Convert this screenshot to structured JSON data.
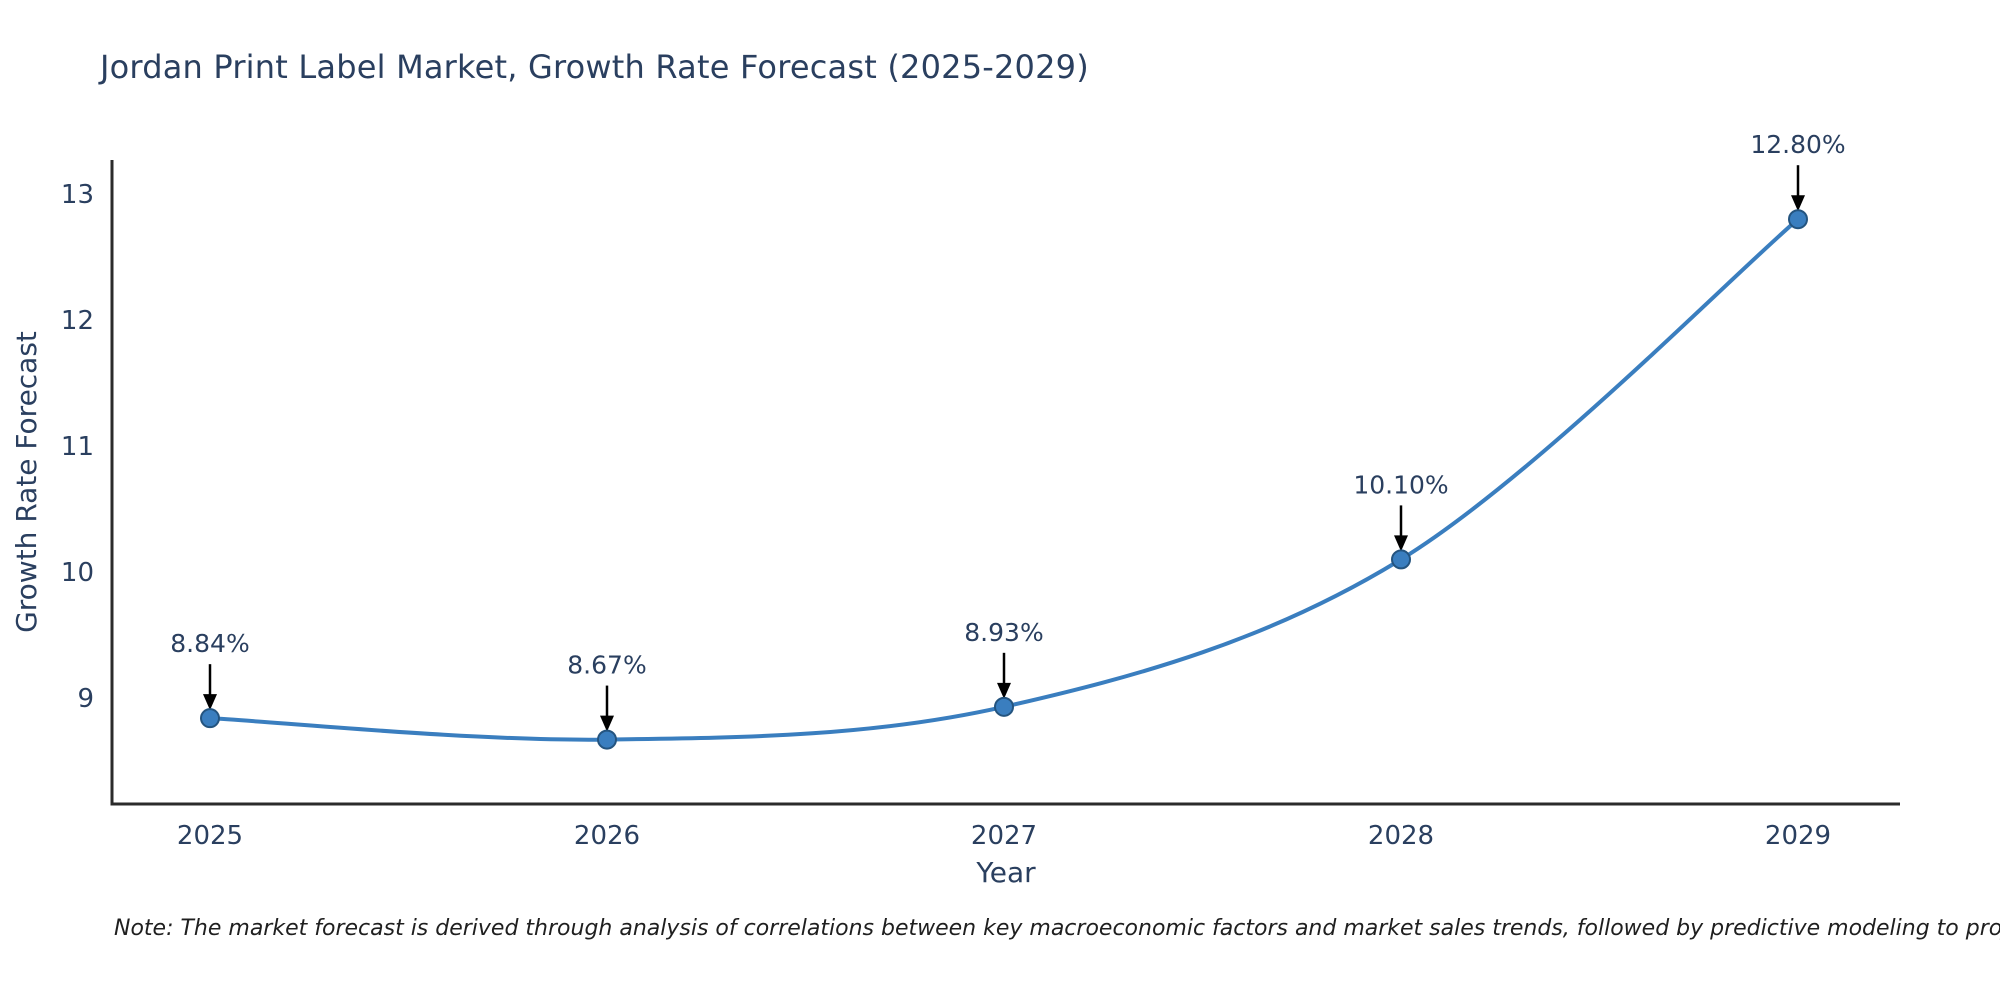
{
  "chart_data": {
    "type": "line",
    "title": "Jordan Print Label Market, Growth Rate Forecast (2025-2029)",
    "xlabel": "Year",
    "ylabel": "Growth Rate Forecast",
    "categories": [
      "2025",
      "2026",
      "2027",
      "2028",
      "2029"
    ],
    "values": [
      8.84,
      8.67,
      8.93,
      10.1,
      12.8
    ],
    "point_labels": [
      "8.84%",
      "8.67%",
      "8.93%",
      "10.10%",
      "12.80%"
    ],
    "yticks": [
      9,
      10,
      11,
      12,
      13
    ],
    "ylim": [
      8.16,
      13.27
    ],
    "line_shape": "spline",
    "grid": false,
    "legend_position": "none",
    "colors": {
      "line": "#3a7ebf",
      "marker": "#3a7ebf",
      "marker_edge": "#24547f",
      "axis": "#2b2b2b",
      "tick_text": "#2a3f5f",
      "annotation_text": "#2a3f5f",
      "arrow": "#000000",
      "title_text": "#2a3f5f"
    },
    "note": "Note: The market forecast is derived through analysis of correlations between key macroeconomic factors and market sales trends, followed by predictive modeling to project future sales"
  }
}
